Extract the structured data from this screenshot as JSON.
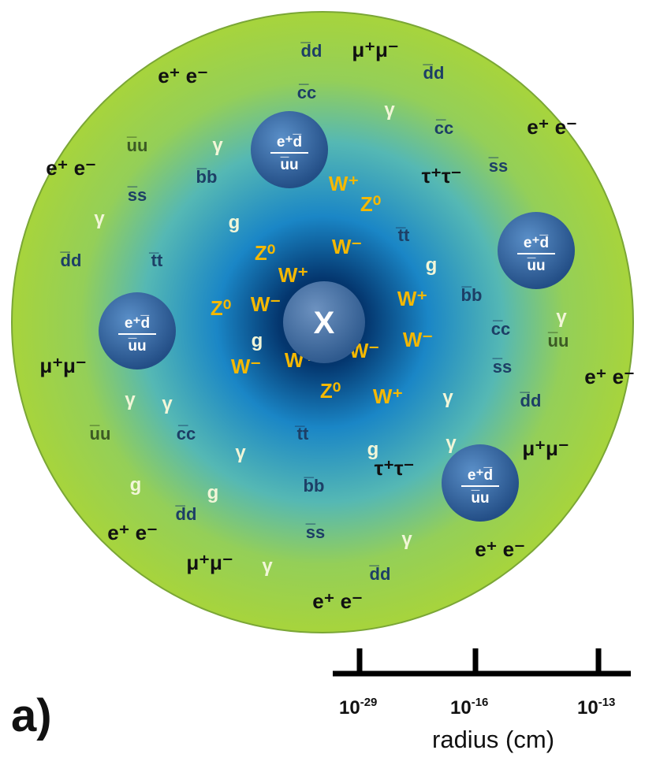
{
  "panel_label": "a)",
  "center_label": "X",
  "colors": {
    "sphere_edge": "#a7d43c",
    "sphere_center": "#02214a",
    "sphere_mid": "#1a86c6",
    "boson": "#f5b800",
    "quark": "#1d3f66",
    "lepton": "#111111",
    "photon": "#f2f6d8",
    "bubble": "#2d5f9c",
    "bubble_text": "#ffffff"
  },
  "bubble": {
    "top": "e⁺d̅",
    "bottom": "u̅u"
  },
  "axis": {
    "ticks": [
      {
        "base": "10",
        "exp": "-29"
      },
      {
        "base": "10",
        "exp": "-16"
      },
      {
        "base": "10",
        "exp": "-13"
      }
    ],
    "title": "radius (cm)"
  },
  "particles": [
    {
      "label": "d̅d",
      "kind": "quark"
    },
    {
      "label": "μ⁺μ⁻",
      "kind": "lepton"
    },
    {
      "label": "d̅d",
      "kind": "quark"
    },
    {
      "label": "e⁺ e⁻",
      "kind": "lepton"
    },
    {
      "label": "c̅c",
      "kind": "quark"
    },
    {
      "label": "γ",
      "kind": "photon"
    },
    {
      "label": "c̅c",
      "kind": "quark"
    },
    {
      "label": "e⁺ e⁻",
      "kind": "lepton"
    },
    {
      "label": "u̅u",
      "kind": "quark_light"
    },
    {
      "label": "γ",
      "kind": "photon"
    },
    {
      "label": "b̅b",
      "kind": "quark"
    },
    {
      "label": "s̅s",
      "kind": "quark"
    },
    {
      "label": "e⁺ e⁻",
      "kind": "lepton"
    },
    {
      "label": "s̅s",
      "kind": "quark"
    },
    {
      "label": "W⁺",
      "kind": "boson"
    },
    {
      "label": "τ⁺τ⁻",
      "kind": "lepton"
    },
    {
      "label": "Z⁰",
      "kind": "boson"
    },
    {
      "label": "γ",
      "kind": "photon"
    },
    {
      "label": "g",
      "kind": "gluon"
    },
    {
      "label": "t̅t",
      "kind": "quark"
    },
    {
      "label": "d̅d",
      "kind": "quark"
    },
    {
      "label": "t̅t",
      "kind": "quark"
    },
    {
      "label": "Z⁰",
      "kind": "boson"
    },
    {
      "label": "W⁻",
      "kind": "boson"
    },
    {
      "label": "g",
      "kind": "gluon"
    },
    {
      "label": "W⁺",
      "kind": "boson"
    },
    {
      "label": "b̅b",
      "kind": "quark"
    },
    {
      "label": "Z⁰",
      "kind": "boson"
    },
    {
      "label": "W⁻",
      "kind": "boson"
    },
    {
      "label": "W⁺",
      "kind": "boson"
    },
    {
      "label": "γ",
      "kind": "photon"
    },
    {
      "label": "c̅c",
      "kind": "quark"
    },
    {
      "label": "u̅u",
      "kind": "quark_light"
    },
    {
      "label": "μ⁺μ⁻",
      "kind": "lepton"
    },
    {
      "label": "g",
      "kind": "gluon"
    },
    {
      "label": "W⁻",
      "kind": "boson"
    },
    {
      "label": "W⁺",
      "kind": "boson"
    },
    {
      "label": "W⁻",
      "kind": "boson"
    },
    {
      "label": "W⁻",
      "kind": "boson"
    },
    {
      "label": "s̅s",
      "kind": "quark"
    },
    {
      "label": "e⁺ e⁻",
      "kind": "lepton"
    },
    {
      "label": "d̅d",
      "kind": "quark"
    },
    {
      "label": "Z⁰",
      "kind": "boson"
    },
    {
      "label": "W⁺",
      "kind": "boson"
    },
    {
      "label": "γ",
      "kind": "photon"
    },
    {
      "label": "γ",
      "kind": "photon"
    },
    {
      "label": "γ",
      "kind": "photon"
    },
    {
      "label": "u̅u",
      "kind": "quark_light"
    },
    {
      "label": "c̅c",
      "kind": "quark"
    },
    {
      "label": "t̅t",
      "kind": "quark"
    },
    {
      "label": "γ",
      "kind": "photon"
    },
    {
      "label": "g",
      "kind": "gluon"
    },
    {
      "label": "τ⁺τ⁻",
      "kind": "lepton"
    },
    {
      "label": "γ",
      "kind": "photon"
    },
    {
      "label": "μ⁺μ⁻",
      "kind": "lepton"
    },
    {
      "label": "g",
      "kind": "gluon"
    },
    {
      "label": "b̅b",
      "kind": "quark"
    },
    {
      "label": "g",
      "kind": "gluon"
    },
    {
      "label": "d̅d",
      "kind": "quark"
    },
    {
      "label": "e⁺ e⁻",
      "kind": "lepton"
    },
    {
      "label": "s̅s",
      "kind": "quark"
    },
    {
      "label": "γ",
      "kind": "photon"
    },
    {
      "label": "e⁺ e⁻",
      "kind": "lepton"
    },
    {
      "label": "μ⁺μ⁻",
      "kind": "lepton"
    },
    {
      "label": "γ",
      "kind": "photon"
    },
    {
      "label": "d̅d",
      "kind": "quark"
    },
    {
      "label": "e⁺ e⁻",
      "kind": "lepton"
    }
  ]
}
